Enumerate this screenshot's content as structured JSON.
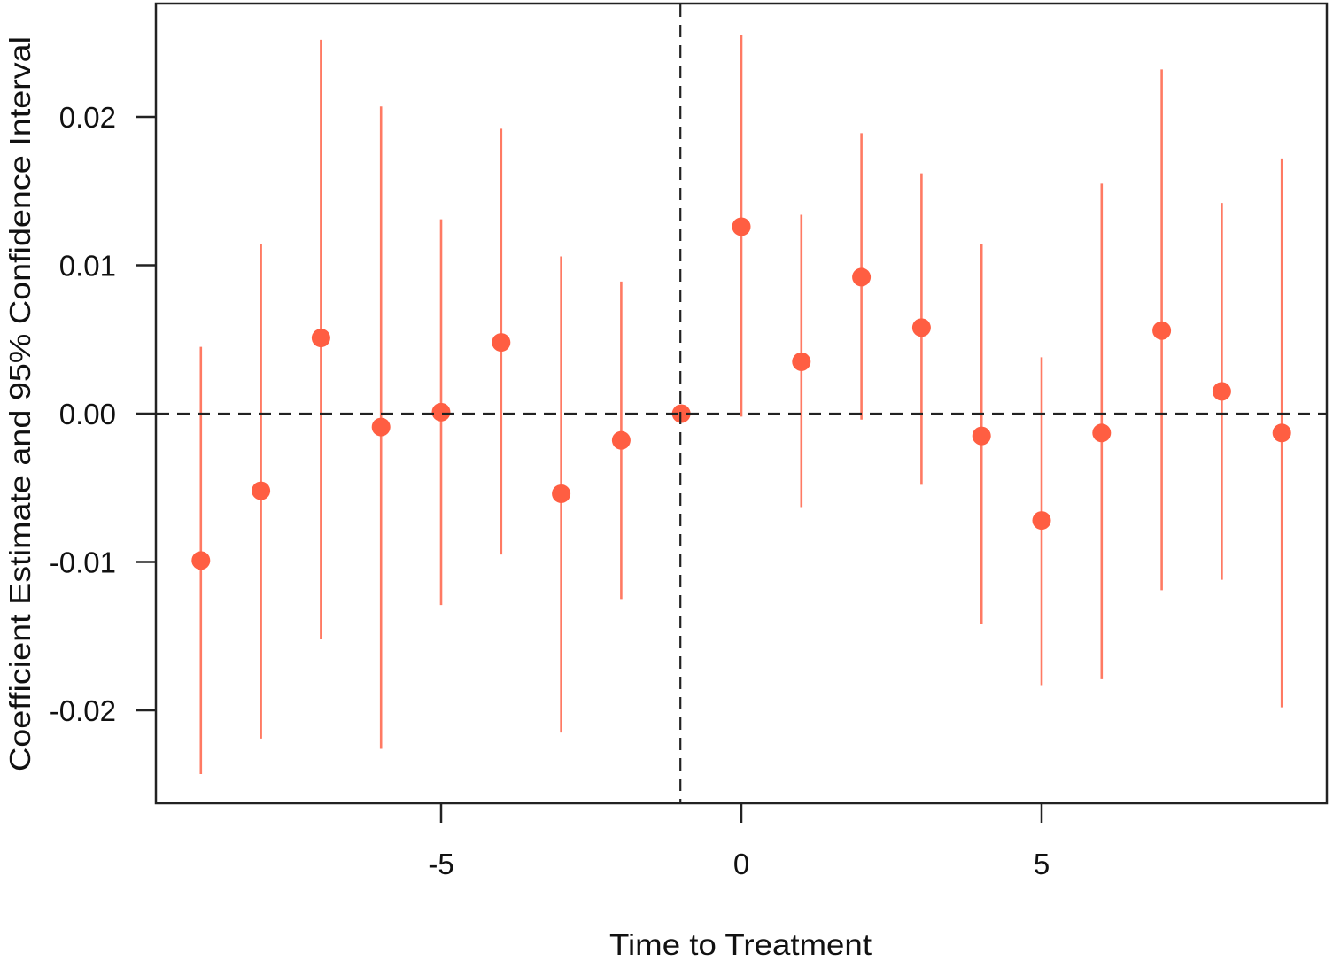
{
  "chart_data": {
    "type": "scatter",
    "subtype": "coefficient plot with 95% confidence intervals (event study)",
    "title": "",
    "xlabel": "Time to Treatment",
    "ylabel": "Coefficient Estimate and 95% Confidence Interval",
    "xlim": [
      -9.5,
      9.75
    ],
    "ylim": [
      -0.0262,
      0.0277
    ],
    "x_ticks": [
      -5,
      0,
      5
    ],
    "x_tick_labels": [
      "-5",
      "0",
      "5"
    ],
    "y_ticks": [
      -0.02,
      -0.01,
      0.0,
      0.01,
      0.02
    ],
    "y_tick_labels": [
      "-0.02",
      "-0.01",
      "0.00",
      "0.01",
      "0.02"
    ],
    "grid": false,
    "legend": null,
    "reference_lines": [
      {
        "orientation": "horizontal",
        "value": 0.0,
        "style": "dashed"
      },
      {
        "orientation": "vertical",
        "value": -1,
        "style": "dashed"
      }
    ],
    "x": [
      -9,
      -8,
      -7,
      -6,
      -5,
      -4,
      -3,
      -2,
      -1,
      0,
      1,
      2,
      3,
      4,
      5,
      6,
      7,
      8,
      9
    ],
    "series": [
      {
        "name": "Coefficient estimate",
        "estimate": [
          -0.0099,
          -0.0052,
          0.0051,
          -0.0009,
          0.0001,
          0.0048,
          -0.0054,
          -0.0018,
          0.0,
          0.0126,
          0.0035,
          0.0092,
          0.0058,
          -0.0015,
          -0.0072,
          -0.0013,
          0.0056,
          0.0015,
          -0.0013
        ],
        "ci_lower": [
          -0.0243,
          -0.0219,
          -0.0152,
          -0.0226,
          -0.0129,
          -0.0095,
          -0.0215,
          -0.0125,
          null,
          -0.0002,
          -0.0063,
          -0.0004,
          -0.0048,
          -0.0142,
          -0.0183,
          -0.0179,
          -0.0119,
          -0.0112,
          -0.0198
        ],
        "ci_upper": [
          0.0045,
          0.0114,
          0.0252,
          0.0207,
          0.0131,
          0.0192,
          0.0106,
          0.0089,
          null,
          0.0255,
          0.0134,
          0.0189,
          0.0162,
          0.0114,
          0.0038,
          0.0155,
          0.0232,
          0.0142,
          0.0172
        ]
      }
    ],
    "colors": {
      "point": "#FF5E42",
      "ci_line": "#FF7A63",
      "axis": "#222222",
      "reference_line": "#222222"
    }
  }
}
